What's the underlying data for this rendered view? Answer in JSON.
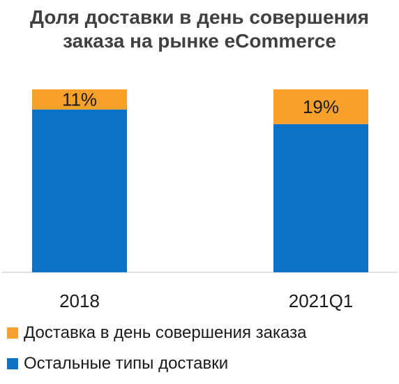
{
  "title_lines": [
    "Доля доставки в день совершения",
    "заказа на рынке eCommerce"
  ],
  "colors": {
    "same_day": "#F7A12C",
    "other": "#0B72C5",
    "axis": "#D9D9D9",
    "text": "#1a1a1a",
    "title": "#404040"
  },
  "chart_data": {
    "type": "bar",
    "stacked": true,
    "normalized_100": true,
    "title": "Доля доставки в день совершения заказа на рынке eCommerce",
    "categories": [
      "2018",
      "2021Q1"
    ],
    "series": [
      {
        "name": "Остальные типы доставки",
        "values": [
          89,
          81
        ],
        "color": "#0B72C5",
        "labels": [
          "",
          ""
        ]
      },
      {
        "name": "Доставка в день совершения заказа",
        "values": [
          11,
          19
        ],
        "color": "#F7A12C",
        "labels": [
          "11%",
          "19%"
        ]
      }
    ],
    "ylim": [
      0,
      100
    ],
    "grid": false,
    "legend_position": "bottom-left"
  },
  "legend": [
    {
      "label": "Доставка в день совершения заказа",
      "color": "#F7A12C"
    },
    {
      "label": "Остальные типы доставки",
      "color": "#0B72C5"
    }
  ]
}
